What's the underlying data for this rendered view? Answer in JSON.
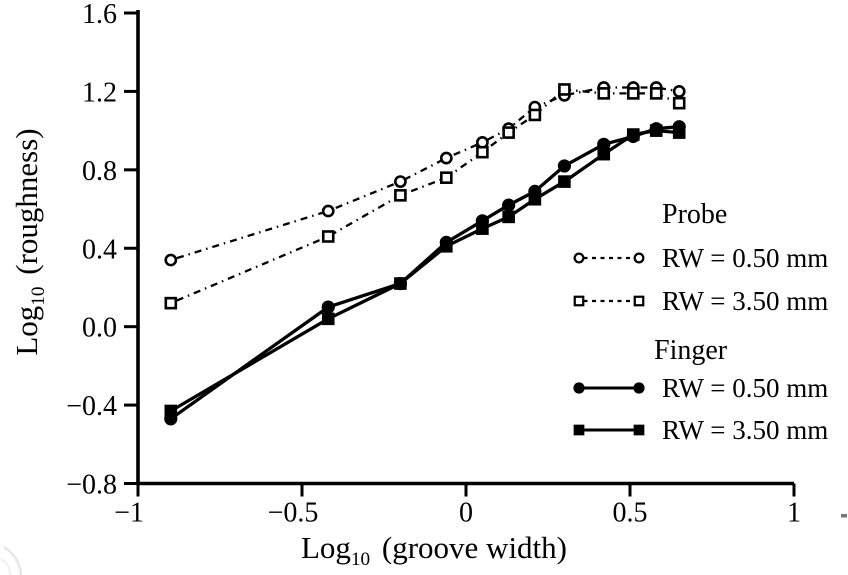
{
  "figure": {
    "background": "#ffffff",
    "ink": "#000000"
  },
  "chart_data": {
    "type": "line",
    "title": "",
    "xlabel_parts": {
      "pre": "Log",
      "sub": "10",
      "post": "(groove width)"
    },
    "ylabel_parts": {
      "pre": "Log",
      "sub": "10",
      "post": "(roughness)"
    },
    "xlim": [
      -1,
      1
    ],
    "ylim": [
      -0.8,
      1.6
    ],
    "grid": false,
    "x_ticks": {
      "values": [
        -1,
        -0.5,
        0,
        0.5,
        1
      ],
      "labels": [
        "−1",
        "−0.5",
        "0",
        "0.5",
        "1"
      ]
    },
    "y_ticks": {
      "values": [
        1.6,
        1.2,
        0.8,
        0.4,
        0,
        -0.4,
        -0.8
      ],
      "labels": [
        "1.6",
        "1.2",
        "0.8",
        "0.4",
        "0.0",
        "−0.4",
        "−0.8"
      ]
    },
    "x": [
      -0.9,
      -0.42,
      -0.2,
      -0.06,
      0.05,
      0.13,
      0.21,
      0.3,
      0.42,
      0.51,
      0.58,
      0.65
    ],
    "series": [
      {
        "name": "Probe RW = 0.50 mm",
        "group": "Probe",
        "label": "RW = 0.50 mm",
        "line": "dashed",
        "marker": "circle-open",
        "y": [
          0.34,
          0.59,
          0.74,
          0.86,
          0.94,
          1.01,
          1.12,
          1.18,
          1.22,
          1.22,
          1.22,
          1.2
        ]
      },
      {
        "name": "Probe RW = 3.50 mm",
        "group": "Probe",
        "label": "RW = 3.50 mm",
        "line": "dashed",
        "marker": "square-open",
        "y": [
          0.12,
          0.46,
          0.67,
          0.76,
          0.89,
          0.99,
          1.08,
          1.21,
          1.19,
          1.19,
          1.19,
          1.14
        ]
      },
      {
        "name": "Finger RW = 0.50 mm",
        "group": "Finger",
        "label": "RW = 0.50 mm",
        "line": "solid",
        "marker": "circle-filled",
        "y": [
          -0.47,
          0.1,
          0.22,
          0.43,
          0.54,
          0.62,
          0.69,
          0.82,
          0.93,
          0.97,
          1.01,
          1.02
        ]
      },
      {
        "name": "Finger RW = 3.50 mm",
        "group": "Finger",
        "label": "RW = 3.50 mm",
        "line": "solid",
        "marker": "square-filled",
        "y": [
          -0.43,
          0.04,
          0.22,
          0.41,
          0.5,
          0.56,
          0.65,
          0.74,
          0.88,
          0.98,
          1.0,
          0.99
        ]
      }
    ],
    "legend": {
      "position": "right-center",
      "groups": [
        {
          "header": "Probe",
          "items": [
            0,
            1
          ]
        },
        {
          "header": "Finger",
          "items": [
            2,
            3
          ]
        }
      ]
    }
  }
}
